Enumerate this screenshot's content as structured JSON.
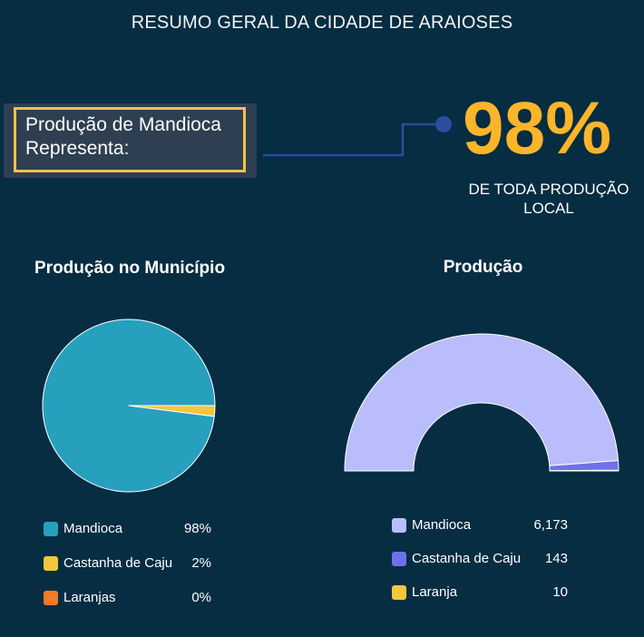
{
  "header": {
    "title": "RESUMO GERAL DA CIDADE DE ARAIOSES"
  },
  "callout": {
    "line1": "Produção de Mandioca",
    "line2": "Representa:",
    "value": "98%",
    "subtitle_line1": "DE TODA PRODUÇÃO",
    "subtitle_line2": "LOCAL"
  },
  "colors": {
    "background": "#062d42",
    "accent": "#fbb52a",
    "callout_border": "#f0c24a",
    "connector": "#2a4da0"
  },
  "chart_data": [
    {
      "type": "pie",
      "title": "Produção no Município",
      "categories": [
        "Mandioca",
        "Castanha de Caju",
        "Laranjas"
      ],
      "values": [
        98,
        2,
        0
      ],
      "value_labels": [
        "98%",
        "2%",
        "0%"
      ],
      "colors": [
        "#27a0be",
        "#f3c63e",
        "#f07c28"
      ],
      "legend": "bottom"
    },
    {
      "type": "pie",
      "subtype": "half-donut",
      "title": "Produção",
      "categories": [
        "Mandioca",
        "Castanha de Caju",
        "Laranja"
      ],
      "values": [
        6173,
        143,
        10
      ],
      "value_labels": [
        "6,173",
        "143",
        "10"
      ],
      "colors": [
        "#babdfb",
        "#6f71ea",
        "#f3c63e"
      ],
      "legend": "bottom"
    }
  ]
}
